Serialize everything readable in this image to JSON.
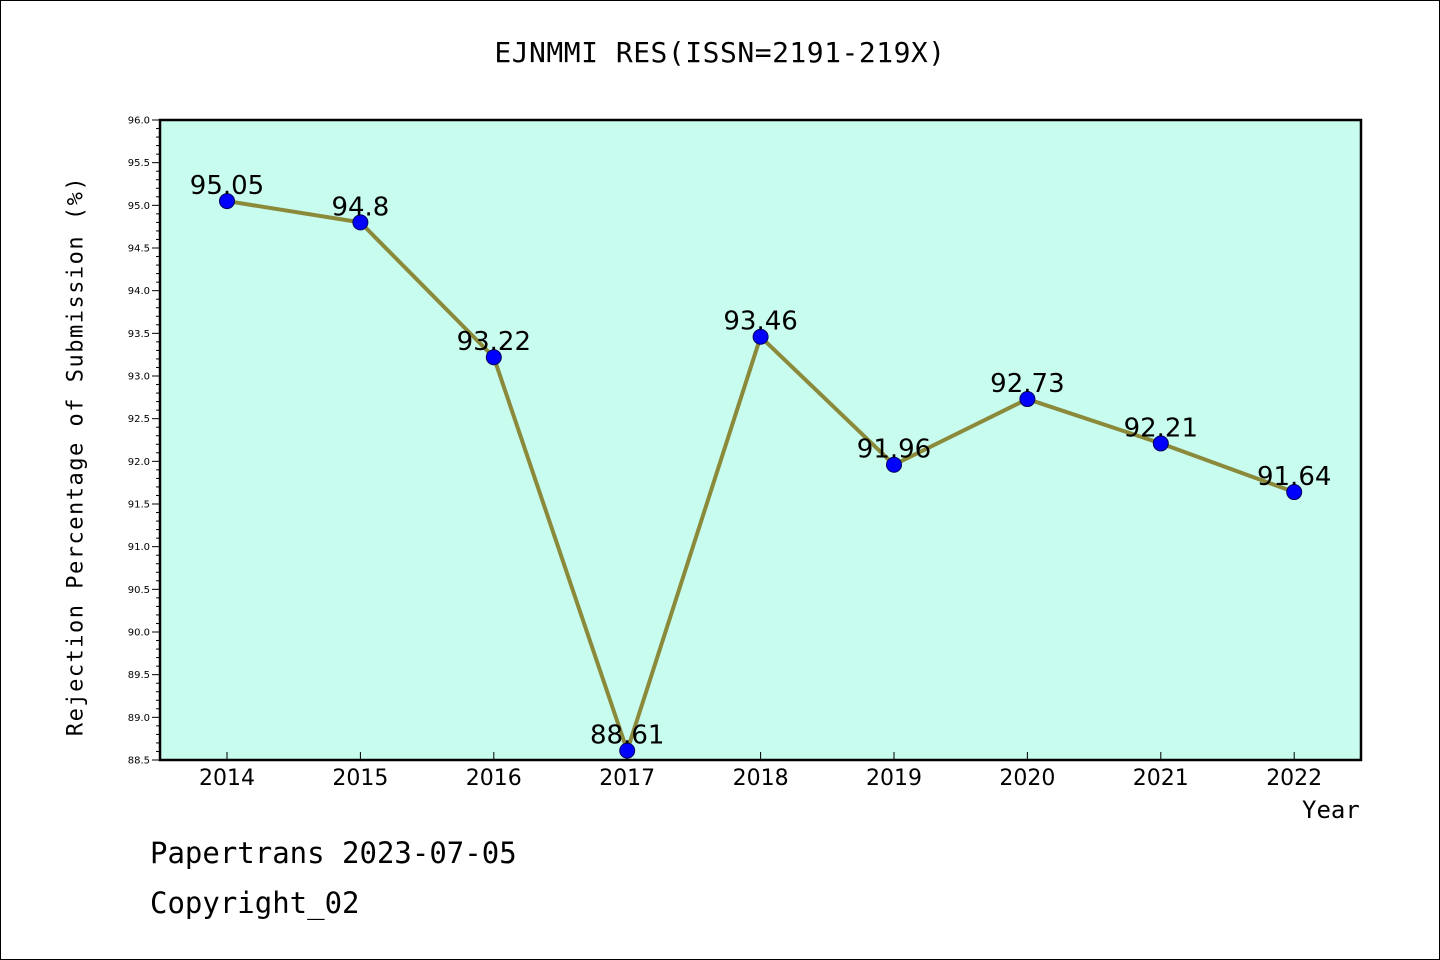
{
  "chart_data": {
    "type": "line",
    "title": "EJNMMI RES(ISSN=2191-219X)",
    "xlabel": "Year",
    "ylabel": "Rejection Percentage of Submission (%)",
    "categories": [
      "2014",
      "2015",
      "2016",
      "2017",
      "2018",
      "2019",
      "2020",
      "2021",
      "2022"
    ],
    "values": [
      95.05,
      94.8,
      93.22,
      88.61,
      93.46,
      91.96,
      92.73,
      92.21,
      91.64
    ],
    "data_labels": [
      "95.05",
      "94.8",
      "93.22",
      "88.61",
      "93.46",
      "91.96",
      "92.73",
      "92.21",
      "91.64"
    ],
    "ylim": [
      88.5,
      96.0
    ],
    "yticks": [
      "88.5",
      "89.0",
      "89.5",
      "90.0",
      "90.5",
      "91.0",
      "91.5",
      "92.0",
      "92.5",
      "93.0",
      "93.5",
      "94.0",
      "94.5",
      "95.0",
      "95.5",
      "96.0"
    ],
    "grid": false,
    "legend": "none",
    "colors": {
      "plot_background": "#c8fcee",
      "line": "#8b8a3b",
      "marker": "#0000ff"
    }
  },
  "footer": {
    "line1": "Papertrans 2023-07-05",
    "line2": "Copyright_02"
  }
}
